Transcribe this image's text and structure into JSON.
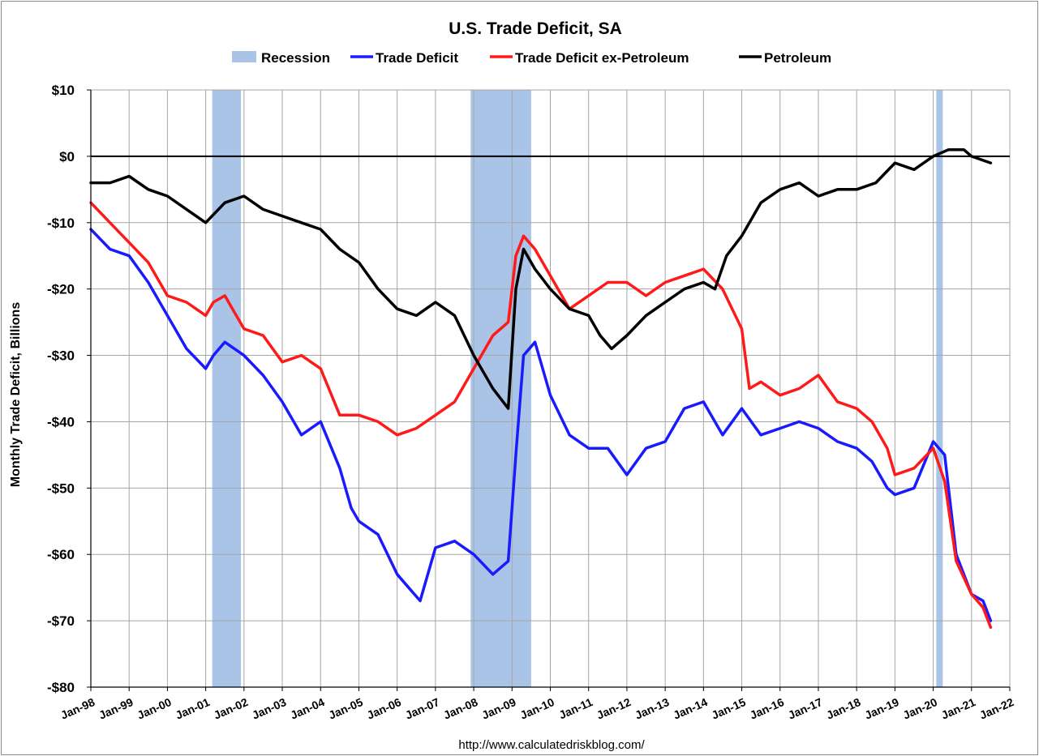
{
  "chart_data": {
    "type": "line",
    "title": "U.S. Trade Deficit, SA",
    "ylabel": "Monthly Trade Deficit, Billions",
    "xlabel": "",
    "source": "http://www.calculatedriskblog.com/",
    "ylim": [
      -80,
      10
    ],
    "yticks": [
      10,
      0,
      -10,
      -20,
      -30,
      -40,
      -50,
      -60,
      -70,
      -80
    ],
    "ytick_labels": [
      "$10",
      "$0",
      "-$10",
      "-$20",
      "-$30",
      "-$40",
      "-$50",
      "-$60",
      "-$70",
      "-$80"
    ],
    "xlim": [
      1998.0,
      2022.0
    ],
    "xticks": [
      1998,
      1999,
      2000,
      2001,
      2002,
      2003,
      2004,
      2005,
      2006,
      2007,
      2008,
      2009,
      2010,
      2011,
      2012,
      2013,
      2014,
      2015,
      2016,
      2017,
      2018,
      2019,
      2020,
      2021,
      2022
    ],
    "xtick_labels": [
      "Jan-98",
      "Jan-99",
      "Jan-00",
      "Jan-01",
      "Jan-02",
      "Jan-03",
      "Jan-04",
      "Jan-05",
      "Jan-06",
      "Jan-07",
      "Jan-08",
      "Jan-09",
      "Jan-10",
      "Jan-11",
      "Jan-12",
      "Jan-13",
      "Jan-14",
      "Jan-15",
      "Jan-16",
      "Jan-17",
      "Jan-18",
      "Jan-19",
      "Jan-20",
      "Jan-21",
      "Jan-22"
    ],
    "grid": true,
    "legend_position": "top",
    "recessions": [
      {
        "start": 2001.17,
        "end": 2001.92
      },
      {
        "start": 2007.92,
        "end": 2009.5
      },
      {
        "start": 2020.08,
        "end": 2020.25
      }
    ],
    "legend": [
      {
        "name": "Recession",
        "kind": "area",
        "color": "#aac4e8"
      },
      {
        "name": "Trade Deficit",
        "kind": "line",
        "color": "#1a1aff"
      },
      {
        "name": "Trade Deficit ex-Petroleum",
        "kind": "line",
        "color": "#ff1a1a"
      },
      {
        "name": "Petroleum",
        "kind": "line",
        "color": "#000000"
      }
    ],
    "series": [
      {
        "name": "Trade Deficit",
        "color": "#1a1aff",
        "x": [
          1998.0,
          1998.5,
          1999.0,
          1999.5,
          2000.0,
          2000.5,
          2001.0,
          2001.2,
          2001.5,
          2002.0,
          2002.5,
          2003.0,
          2003.5,
          2004.0,
          2004.5,
          2004.8,
          2005.0,
          2005.5,
          2006.0,
          2006.3,
          2006.6,
          2007.0,
          2007.5,
          2008.0,
          2008.5,
          2008.9,
          2009.1,
          2009.3,
          2009.6,
          2010.0,
          2010.5,
          2011.0,
          2011.5,
          2012.0,
          2012.5,
          2013.0,
          2013.5,
          2014.0,
          2014.5,
          2015.0,
          2015.5,
          2016.0,
          2016.5,
          2017.0,
          2017.5,
          2018.0,
          2018.4,
          2018.8,
          2019.0,
          2019.5,
          2020.0,
          2020.3,
          2020.6,
          2021.0,
          2021.3,
          2021.5
        ],
        "values": [
          -11,
          -14,
          -15,
          -19,
          -24,
          -29,
          -32,
          -30,
          -28,
          -30,
          -33,
          -37,
          -42,
          -40,
          -47,
          -53,
          -55,
          -57,
          -63,
          -65,
          -67,
          -59,
          -58,
          -60,
          -63,
          -61,
          -45,
          -30,
          -28,
          -36,
          -42,
          -44,
          -44,
          -48,
          -44,
          -43,
          -38,
          -37,
          -42,
          -38,
          -42,
          -41,
          -40,
          -41,
          -43,
          -44,
          -46,
          -50,
          -51,
          -50,
          -43,
          -45,
          -60,
          -66,
          -67,
          -70
        ]
      },
      {
        "name": "Trade Deficit ex-Petroleum",
        "color": "#ff1a1a",
        "x": [
          1998.0,
          1998.5,
          1999.0,
          1999.5,
          2000.0,
          2000.5,
          2001.0,
          2001.2,
          2001.5,
          2002.0,
          2002.5,
          2003.0,
          2003.5,
          2004.0,
          2004.5,
          2005.0,
          2005.5,
          2006.0,
          2006.5,
          2007.0,
          2007.5,
          2008.0,
          2008.5,
          2008.9,
          2009.1,
          2009.3,
          2009.6,
          2010.0,
          2010.5,
          2011.0,
          2011.5,
          2012.0,
          2012.5,
          2013.0,
          2013.5,
          2014.0,
          2014.5,
          2015.0,
          2015.2,
          2015.5,
          2016.0,
          2016.5,
          2017.0,
          2017.5,
          2018.0,
          2018.4,
          2018.8,
          2019.0,
          2019.5,
          2020.0,
          2020.3,
          2020.6,
          2021.0,
          2021.3,
          2021.5
        ],
        "values": [
          -7,
          -10,
          -13,
          -16,
          -21,
          -22,
          -24,
          -22,
          -21,
          -26,
          -27,
          -31,
          -30,
          -32,
          -39,
          -39,
          -40,
          -42,
          -41,
          -39,
          -37,
          -32,
          -27,
          -25,
          -15,
          -12,
          -14,
          -18,
          -23,
          -21,
          -19,
          -19,
          -21,
          -19,
          -18,
          -17,
          -20,
          -26,
          -35,
          -34,
          -36,
          -35,
          -33,
          -37,
          -38,
          -40,
          -44,
          -48,
          -47,
          -44,
          -49,
          -61,
          -66,
          -68,
          -71
        ]
      },
      {
        "name": "Petroleum",
        "color": "#000000",
        "x": [
          1998.0,
          1998.5,
          1999.0,
          1999.5,
          2000.0,
          2000.5,
          2001.0,
          2001.5,
          2002.0,
          2002.5,
          2003.0,
          2003.5,
          2004.0,
          2004.5,
          2005.0,
          2005.5,
          2006.0,
          2006.5,
          2007.0,
          2007.5,
          2008.0,
          2008.5,
          2008.9,
          2009.1,
          2009.3,
          2009.6,
          2010.0,
          2010.5,
          2011.0,
          2011.3,
          2011.6,
          2012.0,
          2012.5,
          2013.0,
          2013.5,
          2014.0,
          2014.3,
          2014.6,
          2015.0,
          2015.5,
          2016.0,
          2016.5,
          2017.0,
          2017.5,
          2018.0,
          2018.5,
          2019.0,
          2019.5,
          2020.0,
          2020.4,
          2020.8,
          2021.0,
          2021.5
        ],
        "values": [
          -4,
          -4,
          -3,
          -5,
          -6,
          -8,
          -10,
          -7,
          -6,
          -8,
          -9,
          -10,
          -11,
          -14,
          -16,
          -20,
          -23,
          -24,
          -22,
          -24,
          -30,
          -35,
          -38,
          -20,
          -14,
          -17,
          -20,
          -23,
          -24,
          -27,
          -29,
          -27,
          -24,
          -22,
          -20,
          -19,
          -20,
          -15,
          -12,
          -7,
          -5,
          -4,
          -6,
          -5,
          -5,
          -4,
          -1,
          -2,
          0,
          1,
          1,
          0,
          -1
        ]
      }
    ]
  }
}
